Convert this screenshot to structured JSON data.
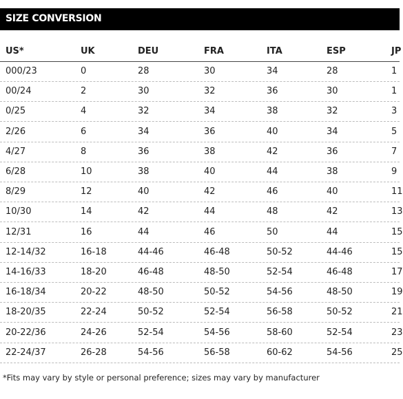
{
  "header": {
    "title": "SIZE CONVERSION"
  },
  "table": {
    "columns": [
      "US*",
      "UK",
      "DEU",
      "FRA",
      "ITA",
      "ESP",
      "JP"
    ],
    "rows": [
      [
        "000/23",
        "0",
        "28",
        "30",
        "34",
        "28",
        "1"
      ],
      [
        "00/24",
        "2",
        "30",
        "32",
        "36",
        "30",
        "1"
      ],
      [
        "0/25",
        "4",
        "32",
        "34",
        "38",
        "32",
        "3"
      ],
      [
        "2/26",
        "6",
        "34",
        "36",
        "40",
        "34",
        "5"
      ],
      [
        "4/27",
        "8",
        "36",
        "38",
        "42",
        "36",
        "7"
      ],
      [
        "6/28",
        "10",
        "38",
        "40",
        "44",
        "38",
        "9"
      ],
      [
        "8/29",
        "12",
        "40",
        "42",
        "46",
        "40",
        "11"
      ],
      [
        "10/30",
        "14",
        "42",
        "44",
        "48",
        "42",
        "13"
      ],
      [
        "12/31",
        "16",
        "44",
        "46",
        "50",
        "44",
        "15"
      ],
      [
        "12-14/32",
        "16-18",
        "44-46",
        "46-48",
        "50-52",
        "44-46",
        "15"
      ],
      [
        "14-16/33",
        "18-20",
        "46-48",
        "48-50",
        "52-54",
        "46-48",
        "17"
      ],
      [
        "16-18/34",
        "20-22",
        "48-50",
        "50-52",
        "54-56",
        "48-50",
        "19"
      ],
      [
        "18-20/35",
        "22-24",
        "50-52",
        "52-54",
        "56-58",
        "50-52",
        "21"
      ],
      [
        "20-22/36",
        "24-26",
        "52-54",
        "54-56",
        "58-60",
        "52-54",
        "23"
      ],
      [
        "22-24/37",
        "26-28",
        "54-56",
        "56-58",
        "60-62",
        "54-56",
        "25"
      ]
    ]
  },
  "footnote": "*Fits may vary by style or personal preference; sizes may vary by manufacturer"
}
